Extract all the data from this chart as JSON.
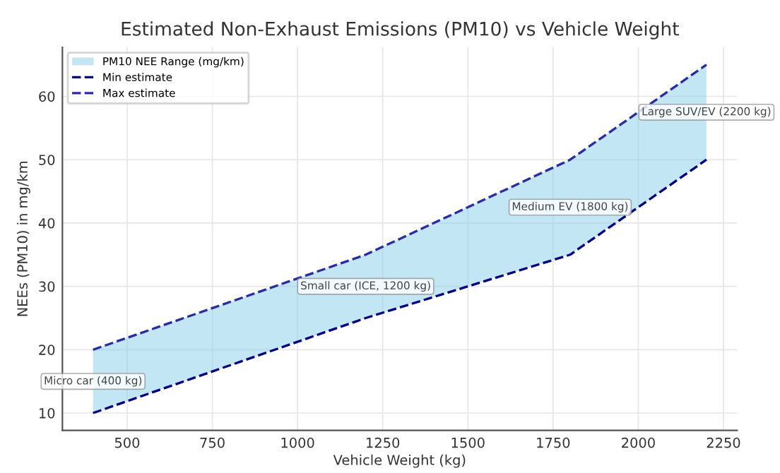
{
  "chart_data": {
    "type": "line",
    "title": "Estimated Non-Exhaust Emissions (PM10) vs Vehicle Weight",
    "xlabel": "Vehicle Weight (kg)",
    "ylabel": "NEEs (PM10) in mg/km",
    "x": [
      400,
      1200,
      1800,
      2200
    ],
    "series": [
      {
        "name": "PM10 NEE Range (mg/km)",
        "type": "area",
        "color": "#87ceeb",
        "values": [
          null,
          null,
          null,
          null
        ],
        "lower": [
          10,
          25,
          35,
          50
        ],
        "upper": [
          20,
          35,
          50,
          65
        ]
      },
      {
        "name": "Min estimate",
        "type": "line",
        "color": "#00008b",
        "values": [
          10,
          25,
          35,
          50
        ]
      },
      {
        "name": "Max estimate",
        "type": "line",
        "color": "#2a2ab0",
        "values": [
          20,
          35,
          50,
          65
        ]
      }
    ],
    "annotations": [
      "Micro car (400 kg)",
      "Small car (ICE, 1200 kg)",
      "Medium EV (1800 kg)",
      "Large SUV/EV (2200 kg)"
    ],
    "xlim": [
      310,
      2290
    ],
    "ylim": [
      7.25,
      67.75
    ],
    "xticks": [
      500,
      750,
      1000,
      1250,
      1500,
      1750,
      2000,
      2250
    ],
    "yticks": [
      10,
      20,
      30,
      40,
      50,
      60
    ],
    "grid": true,
    "legend": "top left",
    "line_style": "dashed",
    "marker": "none"
  }
}
